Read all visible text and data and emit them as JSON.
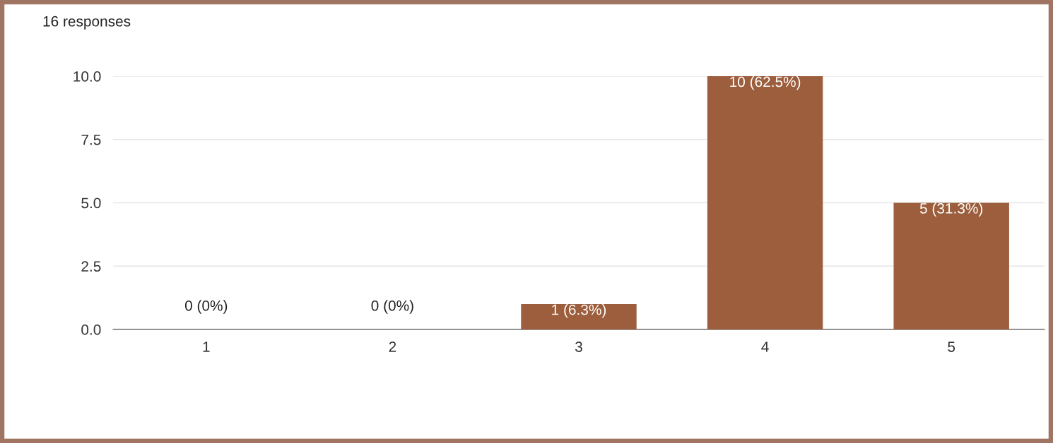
{
  "chart_data": {
    "type": "bar",
    "title": "16 responses",
    "categories": [
      "1",
      "2",
      "3",
      "4",
      "5"
    ],
    "values": [
      0,
      0,
      1,
      10,
      5
    ],
    "value_labels": [
      "0 (0%)",
      "0 (0%)",
      "1 (6.3%)",
      "10 (62.5%)",
      "5 (31.3%)"
    ],
    "color": "#9c5e3c",
    "ylim": [
      0,
      10
    ],
    "yticks": [
      {
        "value": 0,
        "label": "0.0"
      },
      {
        "value": 2.5,
        "label": "2.5"
      },
      {
        "value": 5,
        "label": "5.0"
      },
      {
        "value": 7.5,
        "label": "7.5"
      },
      {
        "value": 10,
        "label": "10.0"
      }
    ],
    "grid": "y",
    "legend": false
  }
}
